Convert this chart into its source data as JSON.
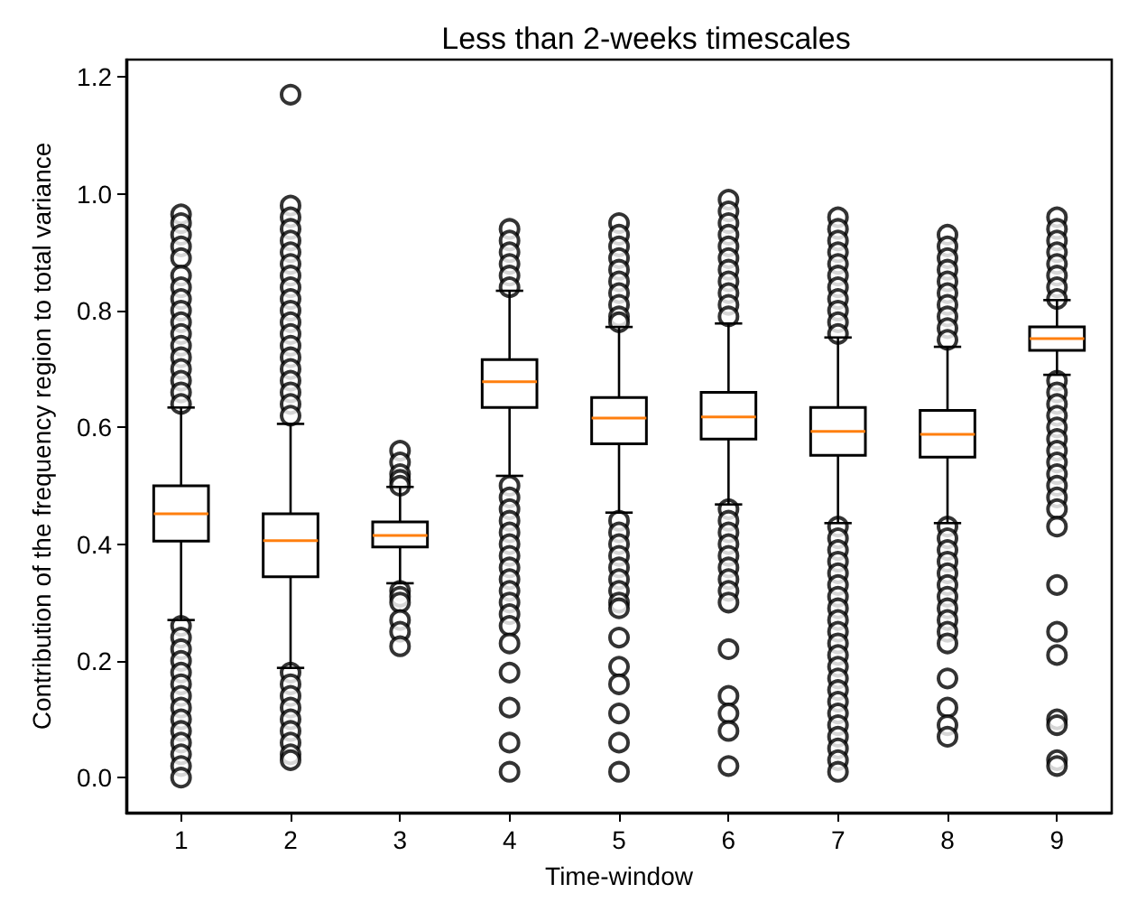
{
  "chart_data": {
    "type": "box",
    "title": "Less than 2-weeks timescales",
    "xlabel": "Time-window",
    "ylabel": "Contribution of the frequency region to total variance",
    "categories": [
      "1",
      "2",
      "3",
      "4",
      "5",
      "6",
      "7",
      "8",
      "9"
    ],
    "ylim": [
      -0.06,
      1.23
    ],
    "yticks": [
      {
        "value": 0,
        "label": "0.0"
      },
      {
        "value": 0.2,
        "label": "0.2"
      },
      {
        "value": 0.4,
        "label": "0.4"
      },
      {
        "value": 0.6,
        "label": "0.6"
      },
      {
        "value": 0.8,
        "label": "0.8"
      },
      {
        "value": 1.0,
        "label": "1.0"
      },
      {
        "value": 1.2,
        "label": "1.2"
      }
    ],
    "marker": "circle",
    "series": [
      {
        "color": "#000000",
        "boxes": [
          {
            "low": 0.27,
            "q1": 0.405,
            "median": 0.452,
            "q3": 0.5,
            "high": 0.634,
            "outliers": [
              0.965,
              0.95,
              0.93,
              0.91,
              0.89,
              0.86,
              0.84,
              0.82,
              0.8,
              0.78,
              0.76,
              0.74,
              0.72,
              0.7,
              0.68,
              0.66,
              0.64,
              0.26,
              0.24,
              0.22,
              0.2,
              0.18,
              0.16,
              0.14,
              0.12,
              0.1,
              0.08,
              0.06,
              0.04,
              0.02,
              0.0
            ]
          },
          {
            "low": 0.188,
            "q1": 0.344,
            "median": 0.406,
            "q3": 0.452,
            "high": 0.606,
            "outliers": [
              1.17,
              0.98,
              0.96,
              0.94,
              0.92,
              0.9,
              0.88,
              0.86,
              0.84,
              0.82,
              0.8,
              0.78,
              0.76,
              0.74,
              0.72,
              0.7,
              0.68,
              0.66,
              0.64,
              0.62,
              0.18,
              0.16,
              0.14,
              0.12,
              0.1,
              0.08,
              0.06,
              0.04,
              0.03
            ]
          },
          {
            "low": 0.333,
            "q1": 0.395,
            "median": 0.415,
            "q3": 0.438,
            "high": 0.498,
            "outliers": [
              0.56,
              0.54,
              0.52,
              0.51,
              0.5,
              0.32,
              0.31,
              0.3,
              0.27,
              0.25,
              0.225
            ]
          },
          {
            "low": 0.517,
            "q1": 0.634,
            "median": 0.678,
            "q3": 0.716,
            "high": 0.834,
            "outliers": [
              0.94,
              0.92,
              0.9,
              0.88,
              0.86,
              0.84,
              0.5,
              0.48,
              0.46,
              0.44,
              0.42,
              0.4,
              0.38,
              0.36,
              0.34,
              0.32,
              0.3,
              0.28,
              0.26,
              0.23,
              0.18,
              0.12,
              0.06,
              0.01
            ]
          },
          {
            "low": 0.454,
            "q1": 0.572,
            "median": 0.616,
            "q3": 0.651,
            "high": 0.772,
            "outliers": [
              0.95,
              0.93,
              0.91,
              0.89,
              0.87,
              0.85,
              0.83,
              0.81,
              0.79,
              0.78,
              0.44,
              0.42,
              0.4,
              0.38,
              0.36,
              0.34,
              0.32,
              0.3,
              0.29,
              0.24,
              0.19,
              0.16,
              0.11,
              0.06,
              0.01
            ]
          },
          {
            "low": 0.468,
            "q1": 0.58,
            "median": 0.618,
            "q3": 0.66,
            "high": 0.778,
            "outliers": [
              0.99,
              0.97,
              0.95,
              0.93,
              0.91,
              0.89,
              0.87,
              0.85,
              0.83,
              0.81,
              0.79,
              0.46,
              0.44,
              0.42,
              0.4,
              0.38,
              0.36,
              0.34,
              0.32,
              0.3,
              0.22,
              0.14,
              0.11,
              0.08,
              0.02
            ]
          },
          {
            "low": 0.436,
            "q1": 0.552,
            "median": 0.593,
            "q3": 0.634,
            "high": 0.754,
            "outliers": [
              0.96,
              0.94,
              0.92,
              0.9,
              0.88,
              0.86,
              0.84,
              0.82,
              0.8,
              0.78,
              0.76,
              0.43,
              0.41,
              0.39,
              0.37,
              0.35,
              0.33,
              0.31,
              0.29,
              0.27,
              0.25,
              0.23,
              0.21,
              0.19,
              0.17,
              0.15,
              0.13,
              0.11,
              0.09,
              0.07,
              0.05,
              0.03,
              0.01
            ]
          },
          {
            "low": 0.436,
            "q1": 0.549,
            "median": 0.588,
            "q3": 0.629,
            "high": 0.738,
            "outliers": [
              0.93,
              0.91,
              0.89,
              0.87,
              0.85,
              0.83,
              0.81,
              0.79,
              0.77,
              0.75,
              0.43,
              0.41,
              0.39,
              0.37,
              0.35,
              0.33,
              0.31,
              0.29,
              0.27,
              0.25,
              0.23,
              0.17,
              0.12,
              0.09,
              0.07
            ]
          },
          {
            "low": 0.69,
            "q1": 0.732,
            "median": 0.752,
            "q3": 0.772,
            "high": 0.818,
            "outliers": [
              0.96,
              0.94,
              0.92,
              0.9,
              0.88,
              0.86,
              0.84,
              0.82,
              0.68,
              0.66,
              0.64,
              0.62,
              0.6,
              0.58,
              0.56,
              0.54,
              0.52,
              0.5,
              0.48,
              0.46,
              0.43,
              0.33,
              0.25,
              0.21,
              0.1,
              0.09,
              0.03,
              0.02
            ]
          }
        ]
      }
    ]
  }
}
